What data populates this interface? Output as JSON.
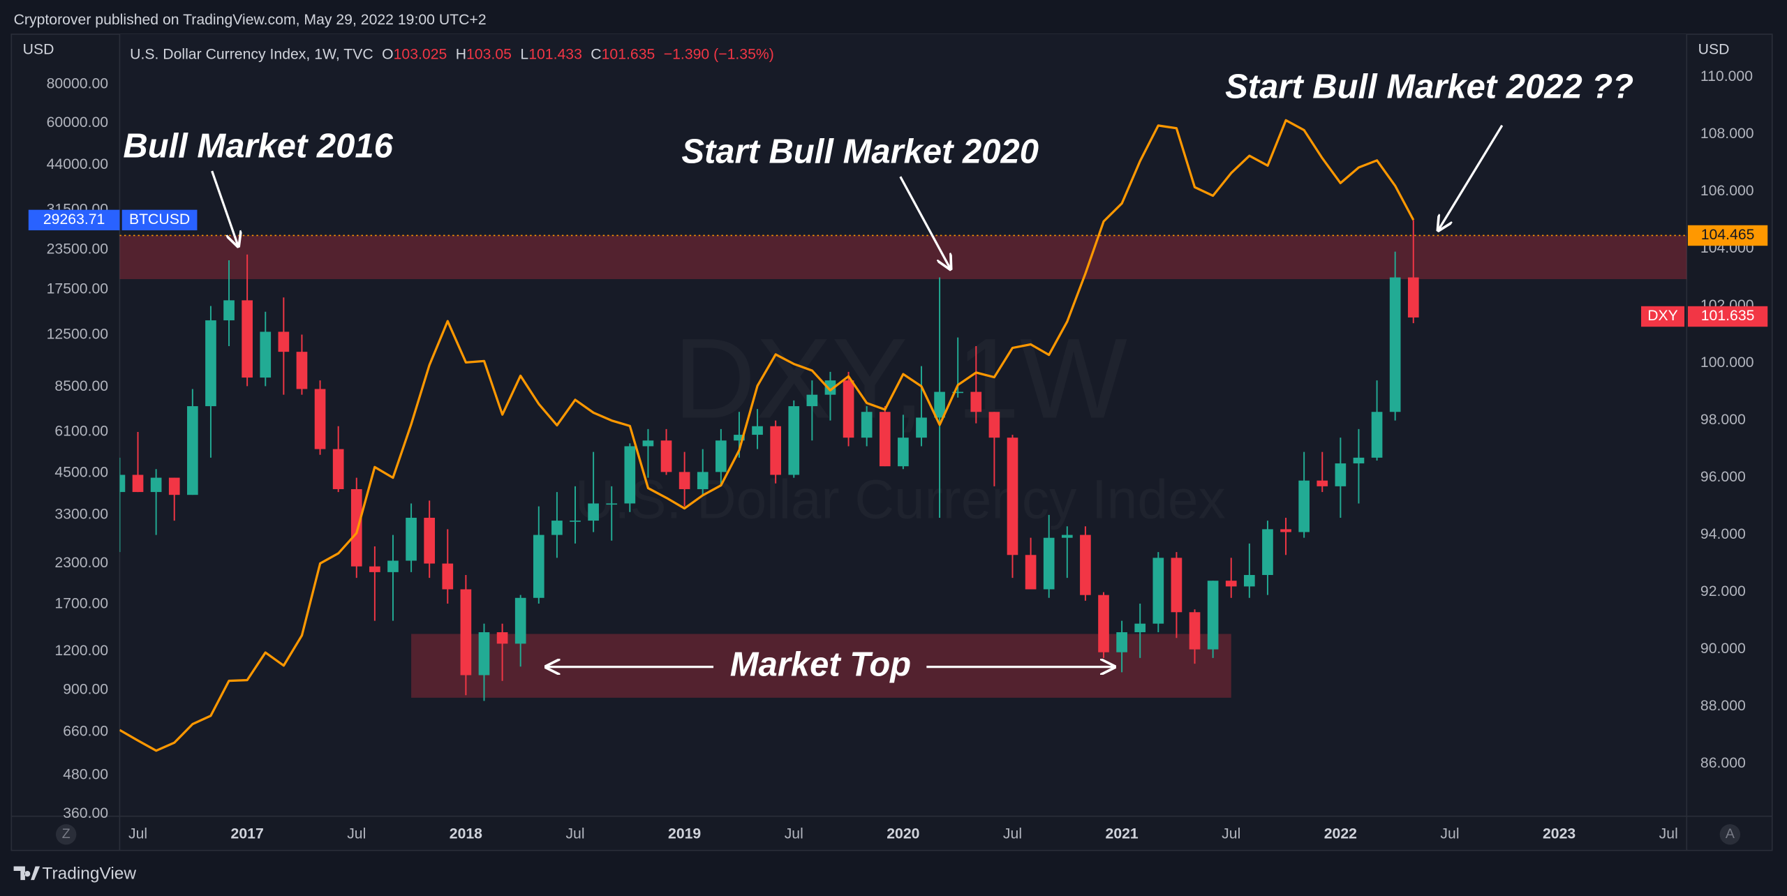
{
  "header": "Cryptorover published on TradingView.com, May 29, 2022 19:00 UTC+2",
  "footer": "TradingView",
  "chart_data": {
    "type": "candlestick",
    "legend": {
      "title": "U.S. Dollar Currency Index, 1W, TVC",
      "o_label": "O",
      "open": 103.025,
      "h_label": "H",
      "high": 103.05,
      "l_label": "L",
      "low": 101.433,
      "c_label": "C",
      "close": 101.635,
      "change": "−1.390",
      "change_pct": "(−1.35%)"
    },
    "watermark": "DXY, 1W",
    "watermark_sub": "U.S. Dollar Currency Index",
    "y_unit": "USD",
    "y2_unit": "USD",
    "z_button": "Z",
    "a_button": "A",
    "annotations": [
      "Bull Market 2016",
      "Start Bull Market 2020",
      "Start Bull Market 2022 ??",
      "Market Top"
    ],
    "xlim": [
      "2016-06",
      "2023-08"
    ],
    "xticks": [
      {
        "value": "2016-07",
        "label": "Jul"
      },
      {
        "value": "2017-01",
        "label": "2017"
      },
      {
        "value": "2017-07",
        "label": "Jul"
      },
      {
        "value": "2018-01",
        "label": "2018"
      },
      {
        "value": "2018-07",
        "label": "Jul"
      },
      {
        "value": "2019-01",
        "label": "2019"
      },
      {
        "value": "2019-07",
        "label": "Jul"
      },
      {
        "value": "2020-01",
        "label": "2020"
      },
      {
        "value": "2020-07",
        "label": "Jul"
      },
      {
        "value": "2021-01",
        "label": "2021"
      },
      {
        "value": "2021-07",
        "label": "Jul"
      },
      {
        "value": "2022-01",
        "label": "2022"
      },
      {
        "value": "2022-07",
        "label": "Jul"
      },
      {
        "value": "2023-01",
        "label": "2023"
      },
      {
        "value": "2023-07",
        "label": "Jul"
      }
    ],
    "log_scale": true,
    "grid": false,
    "ylim": [
      354,
      115900
    ],
    "yticks": [
      {
        "value": 360,
        "label": "360.00"
      },
      {
        "value": 480,
        "label": "480.00"
      },
      {
        "value": 660,
        "label": "660.00"
      },
      {
        "value": 900,
        "label": "900.00"
      },
      {
        "value": 1200,
        "label": "1200.00"
      },
      {
        "value": 1700,
        "label": "1700.00"
      },
      {
        "value": 2300,
        "label": "2300.00"
      },
      {
        "value": 3300,
        "label": "3300.00"
      },
      {
        "value": 4500,
        "label": "4500.00"
      },
      {
        "value": 6100,
        "label": "6100.00"
      },
      {
        "value": 8500,
        "label": "8500.00"
      },
      {
        "value": 12500,
        "label": "12500.00"
      },
      {
        "value": 17500,
        "label": "17500.00"
      },
      {
        "value": 23500,
        "label": "23500.00"
      },
      {
        "value": 31500,
        "label": "31500.00"
      },
      {
        "value": 44000,
        "label": "44000.00"
      },
      {
        "value": 60000,
        "label": "60000.00"
      },
      {
        "value": 80000,
        "label": "80000.00"
      }
    ],
    "y2lim": [
      84.17,
      111.5
    ],
    "y2ticks": [
      {
        "value": 86,
        "label": "86.000"
      },
      {
        "value": 88,
        "label": "88.000"
      },
      {
        "value": 90,
        "label": "90.000"
      },
      {
        "value": 92,
        "label": "92.000"
      },
      {
        "value": 94,
        "label": "94.000"
      },
      {
        "value": 96,
        "label": "96.000"
      },
      {
        "value": 98,
        "label": "98.000"
      },
      {
        "value": 100,
        "label": "100.000"
      },
      {
        "value": 102,
        "label": "102.000"
      },
      {
        "value": 104,
        "label": "104.000"
      },
      {
        "value": 106,
        "label": "106.000"
      },
      {
        "value": 108,
        "label": "108.000"
      },
      {
        "value": 110,
        "label": "110.000"
      }
    ],
    "x": [
      "2016-06",
      "2016-07",
      "2016-08",
      "2016-09",
      "2016-10",
      "2016-11",
      "2016-12",
      "2017-01",
      "2017-02",
      "2017-03",
      "2017-04",
      "2017-05",
      "2017-06",
      "2017-07",
      "2017-08",
      "2017-09",
      "2017-10",
      "2017-11",
      "2017-12",
      "2018-01",
      "2018-02",
      "2018-03",
      "2018-04",
      "2018-05",
      "2018-06",
      "2018-07",
      "2018-08",
      "2018-09",
      "2018-10",
      "2018-11",
      "2018-12",
      "2019-01",
      "2019-02",
      "2019-03",
      "2019-04",
      "2019-05",
      "2019-06",
      "2019-07",
      "2019-08",
      "2019-09",
      "2019-10",
      "2019-11",
      "2019-12",
      "2020-01",
      "2020-02",
      "2020-03",
      "2020-04",
      "2020-05",
      "2020-06",
      "2020-07",
      "2020-08",
      "2020-09",
      "2020-10",
      "2020-11",
      "2020-12",
      "2021-01",
      "2021-02",
      "2021-03",
      "2021-04",
      "2021-05",
      "2021-06",
      "2021-07",
      "2021-08",
      "2021-09",
      "2021-10",
      "2021-11",
      "2021-12",
      "2022-01",
      "2022-02",
      "2022-03",
      "2022-04",
      "2022-05"
    ],
    "series": [
      {
        "name": "DXY",
        "type": "candlestick",
        "axis": "y2",
        "up_color": "#22ab94",
        "down_color": "#f23645",
        "last_price": 101.635,
        "open": [
          95.5,
          96.1,
          95.5,
          96.0,
          95.4,
          98.5,
          101.5,
          102.2,
          99.5,
          101.1,
          100.4,
          99.1,
          97.0,
          95.6,
          92.9,
          92.7,
          93.1,
          94.6,
          93.0,
          92.1,
          89.1,
          90.6,
          90.2,
          91.8,
          94.0,
          94.5,
          94.5,
          95.1,
          95.1,
          97.1,
          97.3,
          96.2,
          95.6,
          96.2,
          97.3,
          97.5,
          97.8,
          96.1,
          98.5,
          98.9,
          99.4,
          97.4,
          98.3,
          96.4,
          97.4,
          98.1,
          99.0,
          99.0,
          98.3,
          97.4,
          93.3,
          92.1,
          93.9,
          94.0,
          91.9,
          89.9,
          90.6,
          90.9,
          93.2,
          91.3,
          90.0,
          92.4,
          92.2,
          92.6,
          94.2,
          94.1,
          95.9,
          95.7,
          96.5,
          96.7,
          98.3,
          103.0
        ],
        "high": [
          96.7,
          97.6,
          96.3,
          96.0,
          99.1,
          102.0,
          103.6,
          103.8,
          101.8,
          102.3,
          101.0,
          99.4,
          97.8,
          96.0,
          93.6,
          94.0,
          95.1,
          95.2,
          94.2,
          92.6,
          90.9,
          90.9,
          91.9,
          95.0,
          95.5,
          95.7,
          96.9,
          95.7,
          97.2,
          97.7,
          97.7,
          96.9,
          97.0,
          97.7,
          98.3,
          98.4,
          98.0,
          98.7,
          99.4,
          99.7,
          99.7,
          98.5,
          98.5,
          98.2,
          99.9,
          103.0,
          100.9,
          100.6,
          98.3,
          97.5,
          93.9,
          94.7,
          94.3,
          94.3,
          92.0,
          91.0,
          91.6,
          93.4,
          93.4,
          91.4,
          92.4,
          93.2,
          93.7,
          94.5,
          94.6,
          96.9,
          96.9,
          97.4,
          97.7,
          99.4,
          103.9,
          105.0
        ],
        "low": [
          93.4,
          95.5,
          94.0,
          94.5,
          95.4,
          96.7,
          100.6,
          99.2,
          99.2,
          98.9,
          98.9,
          96.8,
          95.5,
          92.5,
          91.0,
          91.0,
          92.7,
          92.5,
          91.6,
          88.4,
          88.2,
          88.9,
          89.4,
          91.6,
          93.2,
          93.7,
          94.1,
          93.8,
          94.8,
          96.0,
          96.1,
          95.0,
          95.4,
          95.7,
          96.7,
          97.0,
          95.8,
          96.0,
          97.3,
          98.0,
          97.1,
          97.1,
          96.4,
          96.3,
          97.1,
          94.6,
          98.8,
          97.9,
          95.7,
          92.5,
          92.1,
          91.8,
          92.5,
          91.7,
          89.7,
          89.2,
          89.7,
          90.6,
          90.4,
          89.5,
          89.7,
          91.8,
          91.8,
          91.9,
          93.3,
          93.9,
          95.5,
          94.6,
          95.1,
          96.6,
          98.0,
          101.4
        ],
        "close": [
          96.1,
          95.5,
          96.0,
          95.4,
          98.5,
          101.5,
          102.2,
          99.5,
          101.1,
          100.4,
          99.1,
          97.0,
          95.6,
          92.9,
          92.7,
          93.1,
          94.6,
          93.0,
          92.1,
          89.1,
          90.6,
          90.2,
          91.8,
          94.0,
          94.5,
          94.5,
          95.1,
          95.1,
          97.1,
          97.3,
          96.2,
          95.6,
          96.2,
          97.3,
          97.5,
          97.8,
          96.1,
          98.5,
          98.9,
          99.4,
          97.4,
          98.3,
          96.4,
          97.4,
          98.1,
          99.0,
          99.0,
          98.3,
          97.4,
          93.3,
          92.1,
          93.9,
          94.0,
          91.9,
          89.9,
          90.6,
          90.9,
          93.2,
          91.3,
          90.0,
          92.4,
          92.2,
          92.6,
          94.2,
          94.1,
          95.9,
          95.7,
          96.5,
          96.7,
          98.3,
          103.0,
          101.6
        ]
      },
      {
        "name": "BTCUSD",
        "type": "line",
        "axis": "y",
        "color": "#ff9800",
        "tag_color": "#2962ff",
        "last_price": 29263.71,
        "values": [
          670,
          620,
          575,
          610,
          700,
          745,
          965,
          970,
          1190,
          1080,
          1350,
          2300,
          2480,
          2880,
          4700,
          4340,
          6450,
          10000,
          13850,
          10200,
          10300,
          6930,
          9240,
          7500,
          6400,
          7730,
          7030,
          6630,
          6370,
          4020,
          3740,
          3460,
          3810,
          4100,
          5320,
          8570,
          10820,
          10080,
          9600,
          8290,
          9200,
          7550,
          7190,
          9350,
          8540,
          6420,
          8630,
          9460,
          9140,
          11350,
          11650,
          10780,
          13800,
          19700,
          28990,
          33110,
          45240,
          58920,
          57750,
          37330,
          35040,
          41460,
          47130,
          43790,
          61300,
          57000,
          46300,
          38480,
          43190,
          45540,
          37700,
          29264
        ]
      }
    ],
    "level": {
      "value": 104.465,
      "axis": "y2",
      "color": "#ff9800"
    },
    "zones": [
      {
        "axis": "y2",
        "from": 102.94,
        "to": 104.465,
        "color": "rgba(242,54,69,0.28)"
      },
      {
        "axis": "y2",
        "from": 88.31,
        "to": 90.54,
        "x": [
          "2017-10",
          "2021-07"
        ],
        "color": "rgba(242,54,69,0.28)"
      }
    ]
  }
}
